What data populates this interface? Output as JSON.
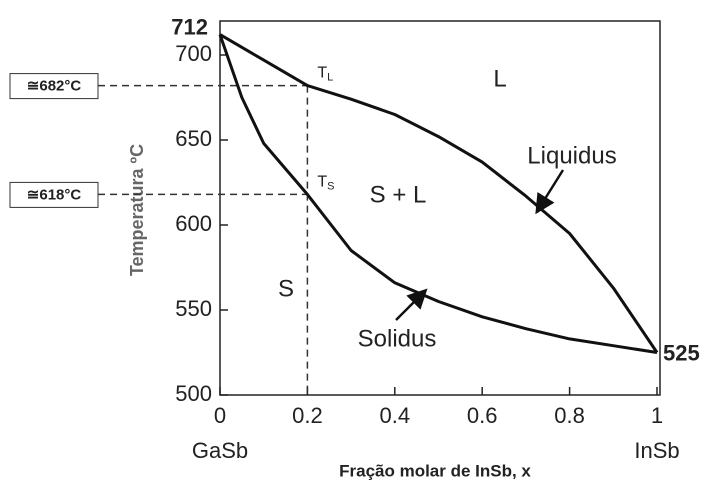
{
  "chart_data": {
    "type": "line",
    "x_label": "Fração molar de InSb, x",
    "y_label": "Temperatura ºC",
    "xlim": [
      0,
      1
    ],
    "ylim": [
      500,
      720
    ],
    "xticks": [
      0,
      0.2,
      0.4,
      0.6,
      0.8,
      1
    ],
    "yticks": [
      500,
      550,
      600,
      650,
      700
    ],
    "x_end_labels": [
      "GaSb",
      "InSb"
    ],
    "series": [
      {
        "name": "Liquidus",
        "color": "#111111",
        "x": [
          0,
          0.1,
          0.2,
          0.3,
          0.4,
          0.5,
          0.6,
          0.7,
          0.8,
          0.9,
          1
        ],
        "values": [
          712,
          697,
          682,
          674,
          665,
          652,
          637,
          617,
          595,
          563,
          525
        ]
      },
      {
        "name": "Solidus",
        "color": "#111111",
        "x": [
          0,
          0.05,
          0.1,
          0.2,
          0.3,
          0.4,
          0.5,
          0.6,
          0.7,
          0.8,
          0.9,
          1
        ],
        "values": [
          712,
          675,
          648,
          618,
          585,
          566,
          555,
          546,
          539,
          533,
          529,
          525
        ]
      }
    ],
    "end_labels": [
      {
        "value": 712,
        "label": "712"
      },
      {
        "value": 525,
        "label": "525"
      }
    ],
    "guides": [
      {
        "x": 0.2,
        "y": 682,
        "label": "≅682°C",
        "symbol": "T",
        "sub": "L"
      },
      {
        "x": 0.2,
        "y": 618,
        "label": "≅618°C",
        "symbol": "T",
        "sub": "S"
      }
    ],
    "regions": [
      "L",
      "S + L",
      "S"
    ]
  }
}
